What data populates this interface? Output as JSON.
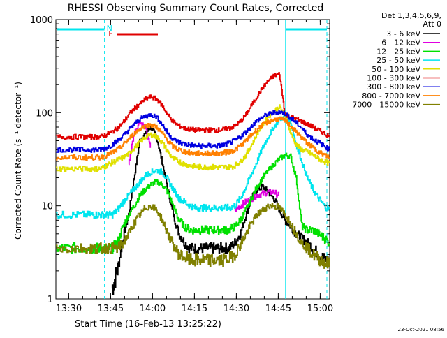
{
  "chart_data": {
    "type": "line",
    "title": "RHESSI Observing Summary Count Rates, Corrected",
    "xlabel": "Start Time (16-Feb-13 13:25:22)",
    "ylabel": "Corrected Count Rate (s⁻¹ detector⁻¹)",
    "yscale": "log",
    "ylim": [
      1,
      1000
    ],
    "xlim_minutes": [
      0,
      98
    ],
    "x_ticks": [
      {
        "label": "13:30",
        "minutes": 4.6
      },
      {
        "label": "13:45",
        "minutes": 19.6
      },
      {
        "label": "14:00",
        "minutes": 34.6
      },
      {
        "label": "14:15",
        "minutes": 49.6
      },
      {
        "label": "14:30",
        "minutes": 64.6
      },
      {
        "label": "14:45",
        "minutes": 79.6
      },
      {
        "label": "15:00",
        "minutes": 94.6
      }
    ],
    "y_ticks": [
      {
        "label": "1",
        "value": 1
      },
      {
        "label": "10",
        "value": 10
      },
      {
        "label": "100",
        "value": 100
      },
      {
        "label": "1000",
        "value": 1000
      }
    ],
    "legend": {
      "header1": "Det 1,3,4,5,6,9,",
      "header2": "Att 0",
      "position": "right"
    },
    "flags": [
      {
        "label": "N",
        "color": "#00e5ee"
      },
      {
        "label": "F",
        "color": "#e00000"
      }
    ],
    "footer_date": "23-Oct-2021 08:56",
    "x": [
      0,
      4,
      8,
      12,
      14,
      16,
      18,
      20,
      22,
      24,
      26,
      28,
      30,
      32,
      34,
      36,
      38,
      40,
      42,
      44,
      46,
      48,
      50,
      52,
      54,
      56,
      58,
      60,
      62,
      64,
      66,
      68,
      70,
      72,
      74,
      76,
      78,
      80,
      82,
      84,
      86,
      88,
      90,
      92,
      94,
      96,
      98
    ],
    "series": [
      {
        "name": "3 - 6 keV",
        "color": "#000000",
        "values": [
          null,
          null,
          null,
          null,
          null,
          null,
          null,
          1.3,
          2,
          4.5,
          8,
          20,
          50,
          60,
          70,
          55,
          30,
          15,
          8,
          5,
          4,
          3.5,
          3.5,
          3.5,
          3.5,
          3.5,
          3.5,
          3.5,
          3.5,
          4,
          5,
          8,
          12,
          15,
          16,
          14,
          12,
          9,
          7,
          6,
          5,
          4.5,
          4,
          3.5,
          3,
          2.7,
          2.5
        ]
      },
      {
        "name": "6 - 12 keV",
        "color": "#e000e0",
        "values": [
          null,
          null,
          null,
          null,
          null,
          null,
          null,
          null,
          null,
          null,
          28,
          60,
          80,
          70,
          40,
          null,
          null,
          null,
          null,
          null,
          null,
          null,
          null,
          null,
          null,
          null,
          null,
          null,
          null,
          9,
          10,
          11,
          12,
          13,
          13.5,
          14,
          14,
          13,
          null,
          null,
          null,
          null,
          null,
          null,
          null,
          null,
          null
        ]
      },
      {
        "name": "12 - 25 keV",
        "color": "#00e000",
        "values": [
          3.5,
          3.5,
          3.5,
          3.5,
          3.5,
          3.5,
          3.5,
          3.5,
          4,
          6,
          8,
          10,
          13,
          15,
          17,
          18,
          17,
          14,
          10,
          7,
          6,
          5.5,
          5.5,
          5.5,
          5.5,
          5.5,
          5.5,
          5.5,
          5.5,
          6,
          7,
          9,
          12,
          16,
          20,
          24,
          28,
          32,
          35,
          34,
          20,
          6,
          5.5,
          5.5,
          5,
          4.5,
          4
        ]
      },
      {
        "name": "25 - 50 keV",
        "color": "#00e5ee",
        "values": [
          8,
          8,
          8,
          8,
          8,
          8,
          8,
          8,
          9,
          11,
          13,
          15,
          18,
          21,
          23,
          24,
          23,
          19,
          15,
          12,
          11,
          10,
          9.5,
          9.5,
          9.5,
          9.5,
          9.5,
          9.5,
          9.5,
          10,
          12,
          16,
          22,
          30,
          42,
          55,
          70,
          85,
          90,
          80,
          45,
          30,
          20,
          15,
          12,
          10,
          9
        ]
      },
      {
        "name": "50 - 100 keV",
        "color": "#e0e000",
        "values": [
          25,
          25,
          25,
          25,
          25,
          25,
          27,
          29,
          31,
          33,
          36,
          42,
          48,
          55,
          58,
          55,
          48,
          38,
          32,
          30,
          28,
          27,
          26.5,
          26,
          26,
          26,
          26,
          26,
          26,
          27,
          30,
          35,
          45,
          60,
          75,
          90,
          105,
          115,
          95,
          60,
          45,
          40,
          38,
          35,
          32,
          30,
          28
        ]
      },
      {
        "name": "100 - 300 keV",
        "color": "#e00000",
        "values": [
          55,
          55,
          55,
          55,
          55,
          55,
          58,
          62,
          68,
          78,
          95,
          110,
          125,
          140,
          148,
          140,
          120,
          95,
          80,
          72,
          68,
          66,
          65,
          65,
          65,
          65,
          65,
          66,
          68,
          72,
          80,
          95,
          120,
          150,
          185,
          220,
          250,
          260,
          95,
          90,
          85,
          80,
          75,
          70,
          65,
          60,
          55
        ]
      },
      {
        "name": "300 - 800 keV",
        "color": "#0000e0",
        "values": [
          40,
          40,
          40,
          40,
          40,
          40,
          42,
          45,
          50,
          56,
          65,
          75,
          85,
          92,
          95,
          90,
          75,
          60,
          52,
          48,
          46,
          45,
          44,
          44,
          44,
          44,
          44,
          45,
          47,
          50,
          55,
          62,
          72,
          82,
          90,
          96,
          100,
          102,
          98,
          88,
          78,
          68,
          58,
          52,
          48,
          44,
          40
        ]
      },
      {
        "name": "800 - 7000 keV",
        "color": "#ff8000",
        "values": [
          33,
          33,
          33,
          33,
          33,
          33,
          35,
          37,
          40,
          45,
          52,
          60,
          67,
          72,
          74,
          70,
          60,
          50,
          43,
          40,
          38,
          37,
          36.5,
          36.5,
          36.5,
          36.5,
          36.5,
          37,
          38,
          40,
          44,
          50,
          58,
          66,
          74,
          80,
          84,
          86,
          82,
          72,
          62,
          54,
          47,
          42,
          38,
          35,
          33
        ]
      },
      {
        "name": "7000 - 15000 keV",
        "color": "#808000",
        "values": [
          3.5,
          3.5,
          3.5,
          3.5,
          3.5,
          3.5,
          3.5,
          3.5,
          3.5,
          4,
          5,
          6.5,
          8,
          9.5,
          10,
          9,
          7,
          5,
          3.8,
          3,
          2.8,
          2.6,
          2.6,
          2.6,
          2.6,
          2.6,
          2.6,
          2.6,
          2.7,
          3,
          3.8,
          5,
          6.5,
          8,
          9,
          10,
          10,
          9.5,
          8,
          6.5,
          5,
          4,
          3.5,
          3,
          2.7,
          2.5,
          2.3
        ]
      }
    ]
  }
}
